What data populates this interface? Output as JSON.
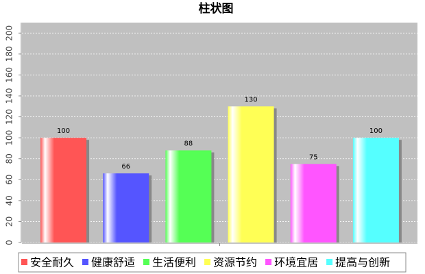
{
  "chart_data": {
    "type": "bar",
    "title": "柱状图",
    "categories": [
      null
    ],
    "series": [
      {
        "name": "安全耐久",
        "color": "#ff5555",
        "values": [
          100
        ]
      },
      {
        "name": "健康舒适",
        "color": "#5555ff",
        "values": [
          66
        ]
      },
      {
        "name": "生活便利",
        "color": "#55ff55",
        "values": [
          88
        ]
      },
      {
        "name": "资源节约",
        "color": "#ffff55",
        "values": [
          130
        ]
      },
      {
        "name": "环境宜居",
        "color": "#ff55ff",
        "values": [
          75
        ]
      },
      {
        "name": "提高与创新",
        "color": "#55ffff",
        "values": [
          100
        ]
      }
    ],
    "ylim": [
      0,
      210
    ],
    "yticks": [
      0,
      20,
      40,
      60,
      80,
      100,
      120,
      140,
      160,
      180,
      200
    ],
    "grid": true,
    "legend": "bottom"
  }
}
